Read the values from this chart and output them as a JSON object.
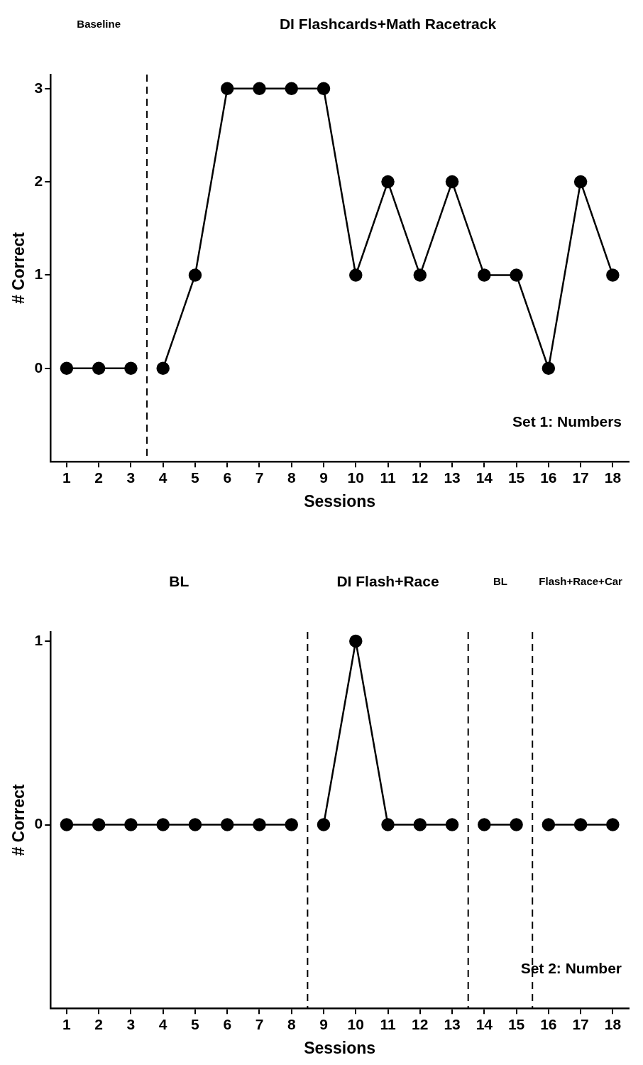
{
  "chart_data": [
    {
      "type": "line",
      "xlabel": "Sessions",
      "ylabel": "# Correct",
      "xlim": [
        0.5,
        18.5
      ],
      "xticks": [
        1,
        2,
        3,
        4,
        5,
        6,
        7,
        8,
        9,
        10,
        11,
        12,
        13,
        14,
        15,
        16,
        17,
        18
      ],
      "ylim": [
        -1,
        3.15
      ],
      "yticks": [
        0,
        1,
        2,
        3
      ],
      "grid": false,
      "legend": false,
      "marker": "circle",
      "line_style": "solid",
      "series": [
        {
          "color": "#000000",
          "x": [
            1,
            2,
            3
          ],
          "values": [
            0,
            0,
            0
          ]
        },
        {
          "color": "#000000",
          "x": [
            4,
            5,
            6,
            7,
            8,
            9,
            10,
            11,
            12,
            13,
            14,
            15,
            16,
            17,
            18
          ],
          "values": [
            0,
            1,
            3,
            3,
            3,
            3,
            1,
            2,
            1,
            2,
            1,
            1,
            0,
            2,
            1
          ]
        }
      ],
      "ref_lines": [
        {
          "axis": "x",
          "value": 3.5,
          "line_style": "dashed",
          "color": "#000000"
        }
      ],
      "annotations": [
        "Baseline",
        "DI Flashcards+Math Racetrack",
        "Set 1: Numbers"
      ]
    },
    {
      "type": "line",
      "xlabel": "Sessions",
      "ylabel": "# Correct",
      "xlim": [
        0.5,
        18.5
      ],
      "xticks": [
        1,
        2,
        3,
        4,
        5,
        6,
        7,
        8,
        9,
        10,
        11,
        12,
        13,
        14,
        15,
        16,
        17,
        18
      ],
      "ylim": [
        -1,
        1.05
      ],
      "yticks": [
        0,
        1
      ],
      "grid": false,
      "legend": false,
      "marker": "circle",
      "line_style": "solid",
      "series": [
        {
          "color": "#000000",
          "x": [
            1,
            2,
            3,
            4,
            5,
            6,
            7,
            8
          ],
          "values": [
            0,
            0,
            0,
            0,
            0,
            0,
            0,
            0
          ]
        },
        {
          "color": "#000000",
          "x": [
            9,
            10,
            11,
            12,
            13
          ],
          "values": [
            0,
            1,
            0,
            0,
            0
          ]
        },
        {
          "color": "#000000",
          "x": [
            14,
            15
          ],
          "values": [
            0,
            0
          ]
        },
        {
          "color": "#000000",
          "x": [
            16,
            17,
            18
          ],
          "values": [
            0,
            0,
            0
          ]
        }
      ],
      "ref_lines": [
        {
          "axis": "x",
          "value": 8.5,
          "line_style": "dashed",
          "color": "#000000"
        },
        {
          "axis": "x",
          "value": 13.5,
          "line_style": "dashed",
          "color": "#000000"
        },
        {
          "axis": "x",
          "value": 15.5,
          "line_style": "dashed",
          "color": "#000000"
        }
      ],
      "annotations": [
        "BL",
        "DI Flash+Race",
        "BL",
        "Flash+Race+Car",
        "Set 2: Number"
      ]
    }
  ]
}
